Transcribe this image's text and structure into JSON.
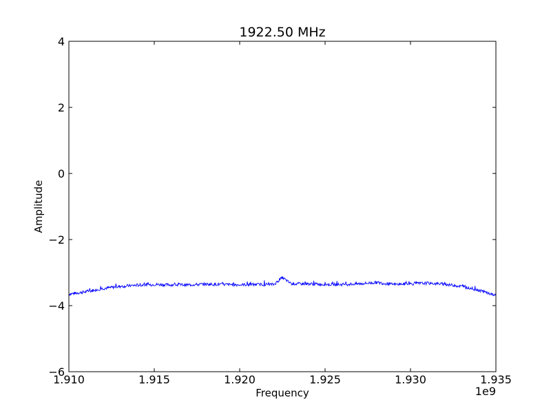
{
  "chart_data": {
    "type": "line",
    "title": "1922.50 MHz",
    "xlabel": "Frequency",
    "ylabel": "Amplitude",
    "x_offset_label": "1e9",
    "xlim": [
      1.91,
      1.935
    ],
    "ylim": [
      -6,
      4
    ],
    "x_ticks": [
      1.91,
      1.915,
      1.92,
      1.925,
      1.93,
      1.935
    ],
    "x_tick_labels": [
      "1.910",
      "1.915",
      "1.920",
      "1.925",
      "1.930",
      "1.935"
    ],
    "y_ticks": [
      4,
      2,
      0,
      -2,
      -4,
      -6
    ],
    "y_tick_labels": [
      "4",
      "2",
      "0",
      "−2",
      "−4",
      "−6"
    ],
    "grid": false,
    "series": [
      {
        "color": "#0000ff",
        "x": [
          1.91,
          1.911,
          1.912,
          1.913,
          1.914,
          1.915,
          1.916,
          1.917,
          1.918,
          1.919,
          1.92,
          1.921,
          1.922,
          1.9225,
          1.923,
          1.924,
          1.925,
          1.926,
          1.927,
          1.928,
          1.929,
          1.93,
          1.931,
          1.932,
          1.933,
          1.934,
          1.935
        ],
        "values": [
          -3.65,
          -3.58,
          -3.48,
          -3.42,
          -3.38,
          -3.36,
          -3.37,
          -3.37,
          -3.35,
          -3.36,
          -3.37,
          -3.36,
          -3.36,
          -3.15,
          -3.34,
          -3.34,
          -3.36,
          -3.36,
          -3.34,
          -3.3,
          -3.36,
          -3.34,
          -3.32,
          -3.35,
          -3.42,
          -3.53,
          -3.7
        ]
      }
    ]
  }
}
